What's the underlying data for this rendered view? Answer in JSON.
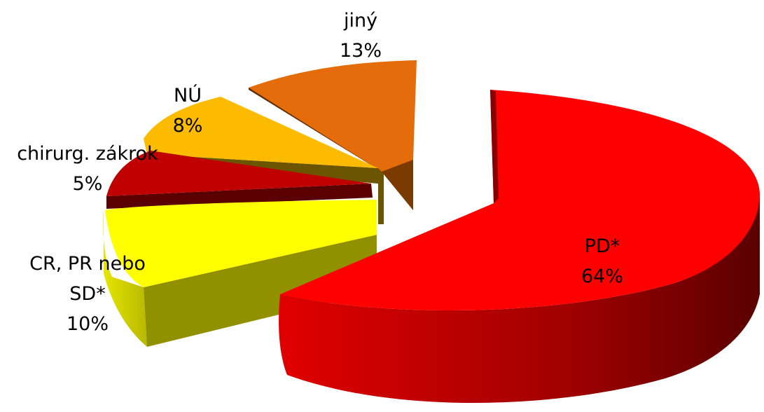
{
  "chart_data": {
    "type": "pie",
    "title": "",
    "style": "3d-exploded",
    "slices": [
      {
        "label_lines": [
          "PD*"
        ],
        "percent": "64%",
        "value": 64,
        "color": "#ff0000"
      },
      {
        "label_lines": [
          "CR, PR nebo",
          "SD*"
        ],
        "percent": "10%",
        "value": 10,
        "color": "#ffff00"
      },
      {
        "label_lines": [
          "chirurg. zákrok"
        ],
        "percent": "5%",
        "value": 5,
        "color": "#c00000"
      },
      {
        "label_lines": [
          "NÚ"
        ],
        "percent": "8%",
        "value": 8,
        "color": "#fdbb00"
      },
      {
        "label_lines": [
          "jiný"
        ],
        "percent": "13%",
        "value": 13,
        "color": "#e46c0a"
      }
    ]
  }
}
